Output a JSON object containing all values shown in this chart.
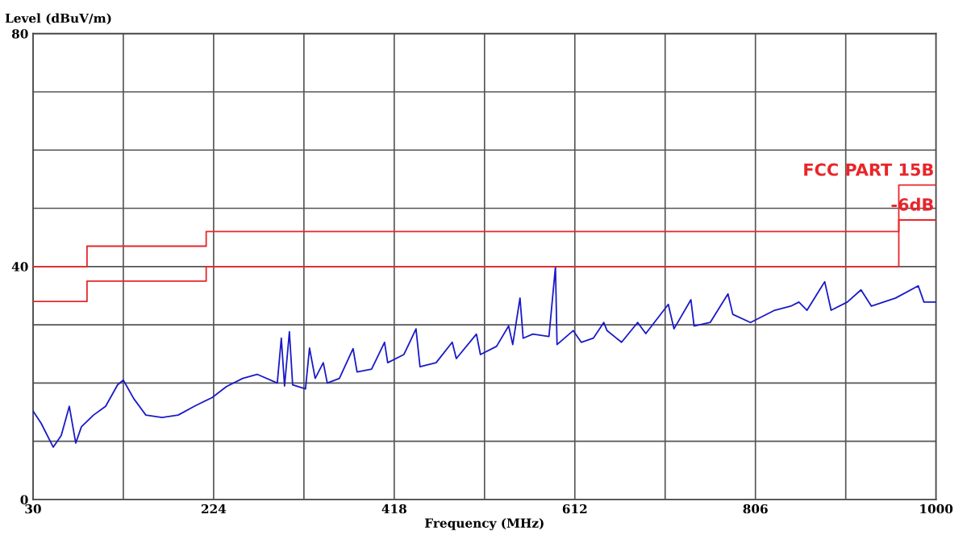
{
  "chart_data": {
    "type": "line",
    "xlabel": "Frequency (MHz)",
    "ylabel": "Level (dBuV/m)",
    "xlim": [
      30,
      1000
    ],
    "ylim": [
      0,
      80
    ],
    "xticks": [
      30,
      {
        "value": 127,
        "label": null
      },
      224,
      {
        "value": 321,
        "label": null
      },
      418,
      {
        "value": 515,
        "label": null
      },
      612,
      {
        "value": 709,
        "label": null
      },
      806,
      {
        "value": 903,
        "label": null
      },
      1000
    ],
    "yticks": [
      0,
      {
        "value": 10,
        "label": null
      },
      {
        "value": 20,
        "label": null
      },
      {
        "value": 30,
        "label": null
      },
      40,
      {
        "value": 50,
        "label": null
      },
      {
        "value": 60,
        "label": null
      },
      {
        "value": 70,
        "label": null
      },
      80
    ],
    "grid": true,
    "legend": false,
    "marker": "none",
    "line_style": "solid",
    "series": [
      {
        "color": "#1a1ac8",
        "x": [
          30,
          38.7,
          51.7,
          60.3,
          69,
          75.9,
          82,
          95,
          108,
          120.9,
          127,
          138.3,
          151.2,
          168.6,
          185.9,
          203.2,
          222.3,
          237.8,
          255.2,
          270.7,
          292.4,
          296.7,
          300.2,
          305.4,
          308.9,
          322.7,
          327,
          333.1,
          341.8,
          346.1,
          359.1,
          373.8,
          378.1,
          393.7,
          407.6,
          411,
          428.4,
          441.4,
          445.7,
          463,
          480.3,
          484.7,
          506.3,
          510.6,
          527.9,
          540.9,
          545.3,
          553.1,
          556.5,
          566.9,
          584.2,
          591.2,
          592.9,
          610.2,
          618.9,
          631.9,
          643.1,
          646.6,
          662.2,
          679.5,
          688.2,
          712.4,
          718.5,
          736.7,
          740.1,
          757.4,
          776.5,
          781.7,
          800.7,
          826.7,
          844,
          852.7,
          861.4,
          880.4,
          887.3,
          904.7,
          919.4,
          930.6,
          956.6,
          980.9,
          987,
          1000
        ],
        "values": [
          15.2,
          13.1,
          9,
          11,
          16,
          9.7,
          12.5,
          14.5,
          16,
          19.7,
          20.5,
          17.3,
          14.5,
          14.1,
          14.5,
          16,
          17.5,
          19.4,
          20.8,
          21.5,
          20,
          27.7,
          19.5,
          28.8,
          19.7,
          19,
          26,
          20.8,
          23.5,
          20,
          20.8,
          25.9,
          21.9,
          22.4,
          27,
          23.5,
          24.9,
          29.3,
          22.8,
          23.5,
          27,
          24.2,
          28.4,
          24.9,
          26.3,
          29.8,
          26.6,
          34.6,
          27.7,
          28.4,
          28,
          40,
          26.6,
          29,
          27,
          27.7,
          30.4,
          29,
          27,
          30.4,
          28.5,
          33.5,
          29.3,
          34.3,
          29.8,
          30.4,
          35.3,
          31.8,
          30.4,
          32.5,
          33.2,
          33.9,
          32.5,
          37.4,
          32.5,
          33.9,
          36,
          33.2,
          34.6,
          36.7,
          33.9,
          33.9
        ]
      },
      {
        "type": "step",
        "name": "FCC PART 15B",
        "color": "#e8262a",
        "x": [
          30,
          88,
          216,
          960,
          1000
        ],
        "values": [
          40,
          43.5,
          46,
          54,
          54
        ]
      },
      {
        "type": "step",
        "name": "-6dB",
        "color": "#e8262a",
        "x": [
          30,
          88,
          216,
          960,
          1000
        ],
        "values": [
          34,
          37.5,
          40,
          48,
          48
        ]
      }
    ]
  }
}
